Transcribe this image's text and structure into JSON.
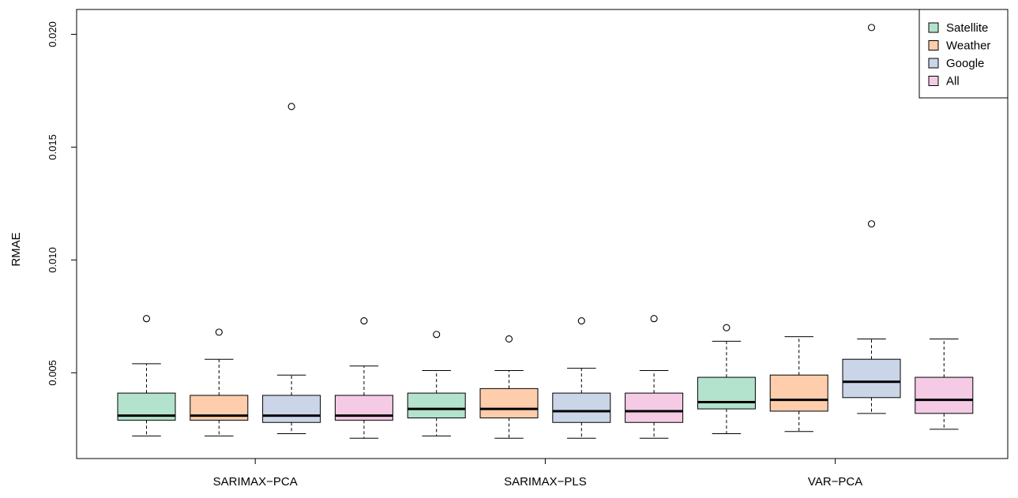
{
  "chart_data": {
    "type": "boxplot",
    "title": "",
    "xlabel": "",
    "ylabel": "RMAE",
    "ylim": [
      0.0012,
      0.0211
    ],
    "yticks": [
      0.005,
      0.01,
      0.015,
      0.02
    ],
    "ytick_labels": [
      "0.005",
      "0.010",
      "0.015",
      "0.020"
    ],
    "grid": false,
    "legend_position": "top-right",
    "groups": [
      "SARIMAX−PCA",
      "SARIMAX−PLS",
      "VAR−PCA"
    ],
    "series": [
      {
        "name": "Satellite",
        "color": "#b3e2cd"
      },
      {
        "name": "Weather",
        "color": "#fdcdac"
      },
      {
        "name": "Google",
        "color": "#cbd5e8"
      },
      {
        "name": "All",
        "color": "#f4cae4"
      }
    ],
    "boxes": [
      {
        "group": 0,
        "series": 0,
        "whisker_low": 0.0022,
        "q1": 0.0029,
        "median": 0.0031,
        "q3": 0.0041,
        "whisker_high": 0.0054,
        "outliers": [
          0.0074
        ]
      },
      {
        "group": 0,
        "series": 1,
        "whisker_low": 0.0022,
        "q1": 0.0029,
        "median": 0.0031,
        "q3": 0.004,
        "whisker_high": 0.0056,
        "outliers": [
          0.0068
        ]
      },
      {
        "group": 0,
        "series": 2,
        "whisker_low": 0.0023,
        "q1": 0.0028,
        "median": 0.0031,
        "q3": 0.004,
        "whisker_high": 0.0049,
        "outliers": [
          0.0168
        ]
      },
      {
        "group": 0,
        "series": 3,
        "whisker_low": 0.0021,
        "q1": 0.0029,
        "median": 0.0031,
        "q3": 0.004,
        "whisker_high": 0.0053,
        "outliers": [
          0.0073
        ]
      },
      {
        "group": 1,
        "series": 0,
        "whisker_low": 0.0022,
        "q1": 0.003,
        "median": 0.0034,
        "q3": 0.0041,
        "whisker_high": 0.0051,
        "outliers": [
          0.0067
        ]
      },
      {
        "group": 1,
        "series": 1,
        "whisker_low": 0.0021,
        "q1": 0.003,
        "median": 0.0034,
        "q3": 0.0043,
        "whisker_high": 0.0051,
        "outliers": [
          0.0065
        ]
      },
      {
        "group": 1,
        "series": 2,
        "whisker_low": 0.0021,
        "q1": 0.0028,
        "median": 0.0033,
        "q3": 0.0041,
        "whisker_high": 0.0052,
        "outliers": [
          0.0073
        ]
      },
      {
        "group": 1,
        "series": 3,
        "whisker_low": 0.0021,
        "q1": 0.0028,
        "median": 0.0033,
        "q3": 0.0041,
        "whisker_high": 0.0051,
        "outliers": [
          0.0074
        ]
      },
      {
        "group": 2,
        "series": 0,
        "whisker_low": 0.0023,
        "q1": 0.0034,
        "median": 0.0037,
        "q3": 0.0048,
        "whisker_high": 0.0064,
        "outliers": [
          0.007
        ]
      },
      {
        "group": 2,
        "series": 1,
        "whisker_low": 0.0024,
        "q1": 0.0033,
        "median": 0.0038,
        "q3": 0.0049,
        "whisker_high": 0.0066,
        "outliers": []
      },
      {
        "group": 2,
        "series": 2,
        "whisker_low": 0.0032,
        "q1": 0.0039,
        "median": 0.0046,
        "q3": 0.0056,
        "whisker_high": 0.0065,
        "outliers": [
          0.0116,
          0.0203
        ]
      },
      {
        "group": 2,
        "series": 3,
        "whisker_low": 0.0025,
        "q1": 0.0032,
        "median": 0.0038,
        "q3": 0.0048,
        "whisker_high": 0.0065,
        "outliers": []
      }
    ]
  }
}
